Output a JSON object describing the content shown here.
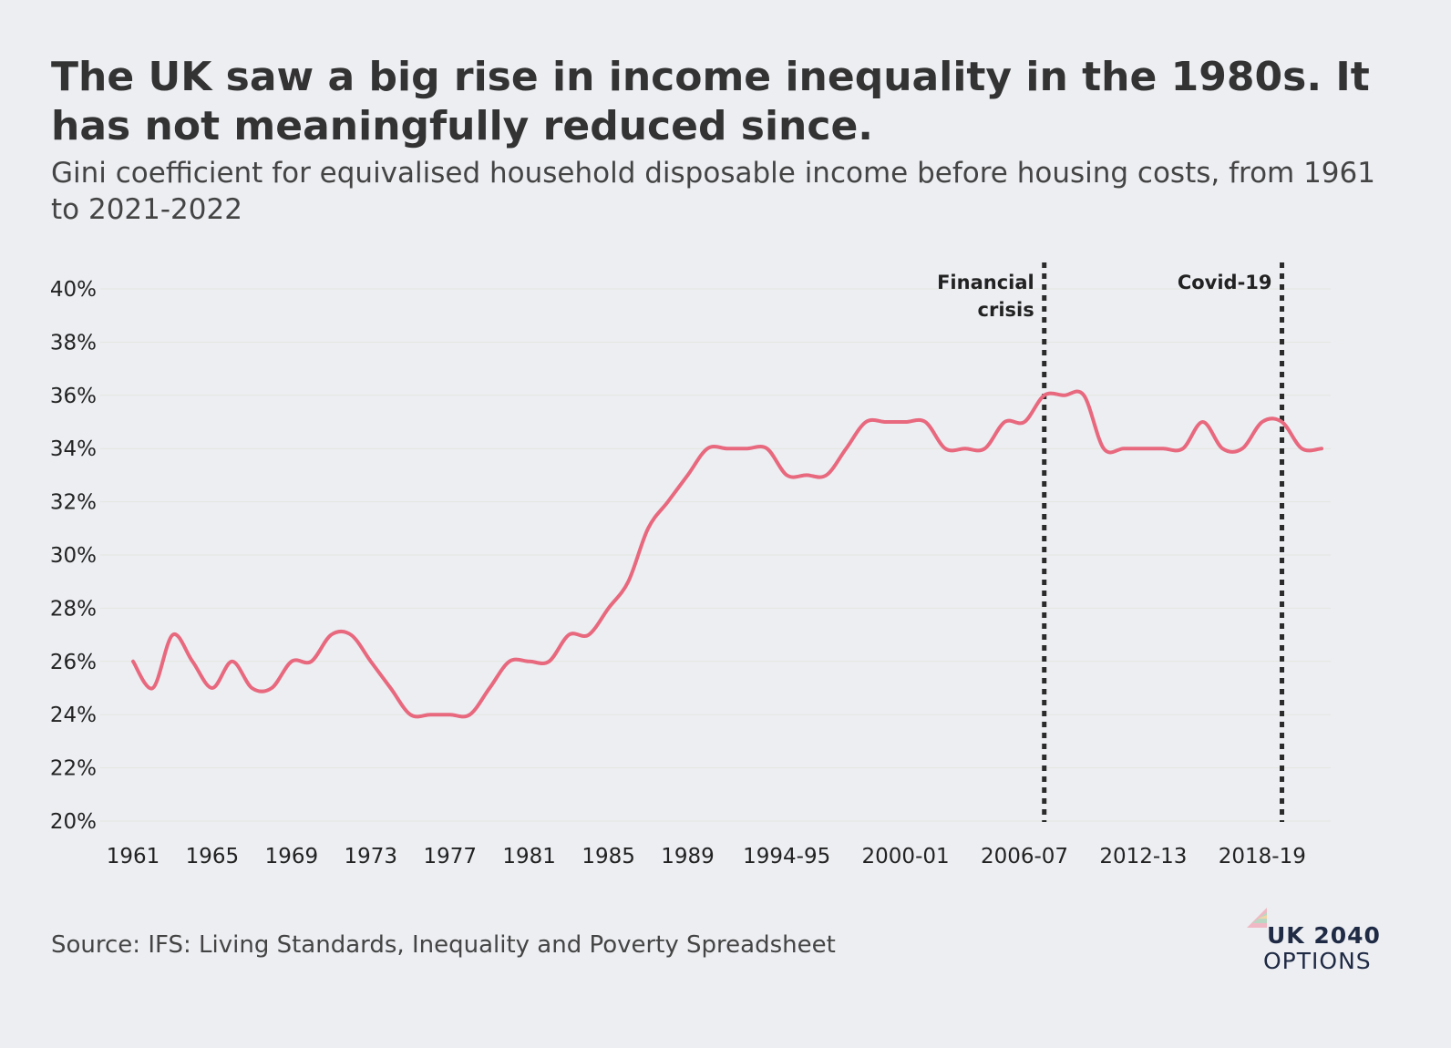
{
  "title": "The UK saw a big rise in income inequality in the 1980s. It has not meaningfully reduced since.",
  "subtitle": "Gini coefficient for equivalised household disposable income before housing costs, from 1961 to 2021-2022",
  "source": "Source: IFS: Living Standards, Inequality and Poverty Spreadsheet",
  "logo": {
    "line1": "UK 2040",
    "line2": "OPTIONS"
  },
  "colors": {
    "line": "#e8687e",
    "background": "#eceef2",
    "marker_line": "#2b2b2b",
    "text": "#333333",
    "logo": "#1f2a44"
  },
  "chart_data": {
    "type": "line",
    "title": "The UK saw a big rise in income inequality in the 1980s. It has not meaningfully reduced since.",
    "xlabel": "",
    "ylabel": "",
    "ylim": [
      20,
      40
    ],
    "yticks": [
      "20%",
      "22%",
      "24%",
      "26%",
      "28%",
      "30%",
      "32%",
      "34%",
      "36%",
      "38%",
      "40%"
    ],
    "grid": true,
    "legend": "none",
    "x": [
      "1961",
      "1962",
      "1963",
      "1964",
      "1965",
      "1966",
      "1967",
      "1968",
      "1969",
      "1970",
      "1971",
      "1972",
      "1973",
      "1974",
      "1975",
      "1976",
      "1977",
      "1978",
      "1979",
      "1980",
      "1981",
      "1982",
      "1983",
      "1984",
      "1985",
      "1986",
      "1987",
      "1988",
      "1989",
      "1990",
      "1991",
      "1992",
      "1993",
      "1994-95",
      "1995-96",
      "1996-97",
      "1997-98",
      "1998-99",
      "1999-00",
      "2000-01",
      "2001-02",
      "2002-03",
      "2003-04",
      "2004-05",
      "2005-06",
      "2006-07",
      "2007-08",
      "2008-09",
      "2009-10",
      "2010-11",
      "2011-12",
      "2012-13",
      "2013-14",
      "2014-15",
      "2015-16",
      "2016-17",
      "2017-18",
      "2018-19",
      "2019-20",
      "2020-21",
      "2021-22"
    ],
    "xticks": [
      "1961",
      "1965",
      "1969",
      "1973",
      "1977",
      "1981",
      "1985",
      "1989",
      "1994-95",
      "2000-01",
      "2006-07",
      "2012-13",
      "2018-19"
    ],
    "series": [
      {
        "values": [
          26.0,
          25.0,
          27.0,
          26.0,
          25.0,
          26.0,
          25.0,
          25.0,
          26.0,
          26.0,
          27.0,
          27.0,
          26.0,
          25.0,
          24.0,
          24.0,
          24.0,
          24.0,
          25.0,
          26.0,
          26.0,
          26.0,
          27.0,
          27.0,
          28.0,
          29.0,
          31.0,
          32.0,
          33.0,
          34.0,
          34.0,
          34.0,
          34.0,
          33.0,
          33.0,
          33.0,
          34.0,
          35.0,
          35.0,
          35.0,
          35.0,
          34.0,
          34.0,
          34.0,
          35.0,
          35.0,
          36.0,
          36.0,
          36.0,
          34.0,
          34.0,
          34.0,
          34.0,
          34.0,
          35.0,
          34.0,
          34.0,
          35.0,
          35.0,
          34.0,
          34.0
        ]
      }
    ],
    "annotations": [
      {
        "at": "2007-08",
        "lines": [
          "Financial",
          "crisis"
        ]
      },
      {
        "at": "2019-20",
        "lines": [
          "Covid-19"
        ]
      }
    ]
  }
}
